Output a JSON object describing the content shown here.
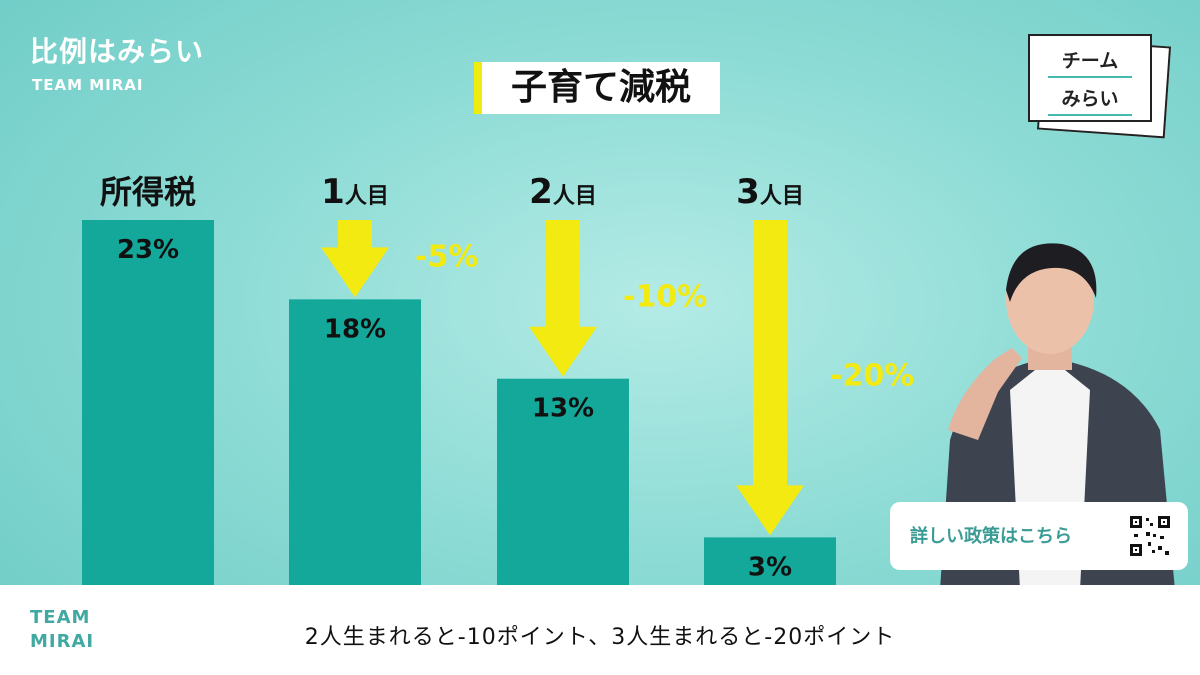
{
  "brand": {
    "title": "比例はみらい",
    "subtitle": "TEAM MIRAI"
  },
  "logo": {
    "line1": "チーム",
    "line2": "みらい"
  },
  "chart_data": {
    "type": "bar",
    "title": "子育て減税",
    "categories": [
      "所得税",
      "1人目",
      "2人目",
      "3人目"
    ],
    "category_numbers": [
      "",
      "1",
      "2",
      "3"
    ],
    "category_suffixes": [
      "",
      "人目",
      "人目",
      "人目"
    ],
    "values": [
      23,
      18,
      13,
      3
    ],
    "value_labels": [
      "23%",
      "18%",
      "13%",
      "3%"
    ],
    "reductions": [
      "",
      "-5%",
      "-10%",
      "-20%"
    ],
    "ylim": [
      0,
      23
    ],
    "bar_color": "#13a89a",
    "arrow_color": "#f2ea11"
  },
  "card": {
    "text": "詳しい政策はこちら",
    "icon": "qr-code-icon"
  },
  "footer": {
    "logo_line1": "TEAM",
    "logo_line2": "MIRAI",
    "caption": "2人生まれると-10ポイント、3人生まれると-20ポイント"
  }
}
